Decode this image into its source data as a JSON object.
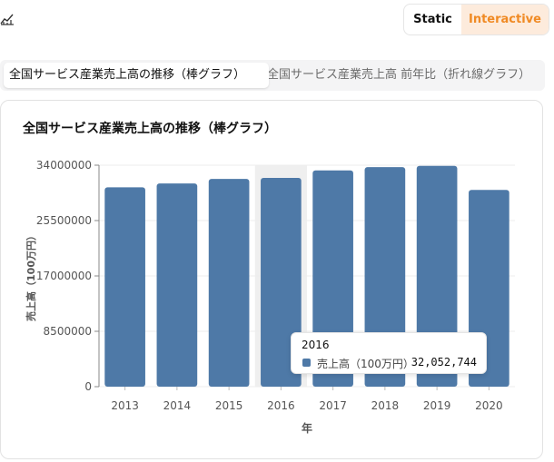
{
  "header": {
    "icon": "line-chart-icon"
  },
  "mode_toggle": {
    "static_label": "Static",
    "interactive_label": "Interactive",
    "selected": "Interactive"
  },
  "tabs": [
    {
      "label": "全国サービス産業売上高の推移（棒グラフ）",
      "active": true
    },
    {
      "label": "全国サービス産業売上高 前年比（折れ線グラフ）",
      "active": false
    }
  ],
  "colors": {
    "bar": "#4e79a7",
    "hover_band": "#efefef",
    "accent": "#f08a24"
  },
  "chart_data": {
    "type": "bar",
    "title": "全国サービス産業売上高の推移（棒グラフ）",
    "xlabel": "年",
    "ylabel": "売上高（100万円）",
    "categories": [
      "2013",
      "2014",
      "2015",
      "2016",
      "2017",
      "2018",
      "2019",
      "2020"
    ],
    "series": [
      {
        "name": "売上高（100万円）",
        "values": [
          30600000,
          31200000,
          31900000,
          32052744,
          33200000,
          33700000,
          33900000,
          30200000
        ]
      }
    ],
    "ylim": [
      0,
      34000000
    ],
    "yticks": [
      0,
      8500000,
      17000000,
      25500000,
      34000000
    ],
    "ytick_labels": [
      "0",
      "8500000",
      "17000000",
      "25500000",
      "34000000"
    ],
    "grid": true,
    "highlighted_category": "2016"
  },
  "tooltip": {
    "title": "2016",
    "series_name": "売上高（100万円）",
    "value": "32,052,744"
  }
}
